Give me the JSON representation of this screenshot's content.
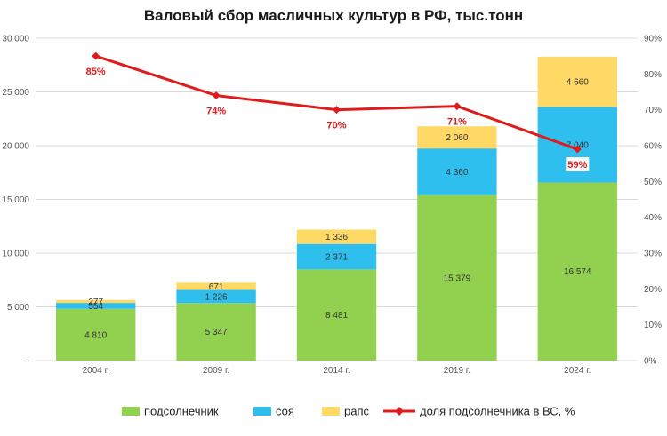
{
  "chart_data": {
    "type": "bar",
    "stacked": true,
    "title": "Валовый сбор масличных культур в РФ, тыс.тонн",
    "categories": [
      "2004 г.",
      "2009 г.",
      "2014 г.",
      "2019 г.",
      "2024 г."
    ],
    "series": [
      {
        "name": "подсолнечник",
        "color": "#92d050",
        "values": [
          4810,
          5347,
          8481,
          15379,
          16574
        ],
        "value_labels": [
          "4 810",
          "5 347",
          "8 481",
          "15 379",
          "16 574"
        ]
      },
      {
        "name": "соя",
        "color": "#2fbfee",
        "values": [
          554,
          1226,
          2371,
          4360,
          7040
        ],
        "value_labels": [
          "554",
          "1 226",
          "2 371",
          "4 360",
          "7 040"
        ]
      },
      {
        "name": "рапс",
        "color": "#ffd966",
        "values": [
          277,
          671,
          1336,
          2060,
          4660
        ],
        "value_labels": [
          "277",
          "671",
          "1 336",
          "2 060",
          "4 660"
        ]
      }
    ],
    "line_series": {
      "name": "доля подсолнечника в ВС, %",
      "color": "#e01b1b",
      "axis": "right",
      "values": [
        85,
        74,
        70,
        71,
        59
      ],
      "value_labels": [
        "85%",
        "74%",
        "70%",
        "71%",
        "59%"
      ]
    },
    "left_axis": {
      "ylim": [
        0,
        30000
      ],
      "ticks": [
        0,
        5000,
        10000,
        15000,
        20000,
        25000,
        30000
      ],
      "tick_labels": [
        "-",
        "5 000",
        "10 000",
        "15 000",
        "20 000",
        "25 000",
        "30 000"
      ]
    },
    "right_axis": {
      "ylim": [
        0,
        90
      ],
      "ticks": [
        0,
        10,
        20,
        30,
        40,
        50,
        60,
        70,
        80,
        90
      ],
      "tick_labels": [
        "0%",
        "10%",
        "20%",
        "30%",
        "40%",
        "50%",
        "60%",
        "70%",
        "80%",
        "90%"
      ]
    },
    "grid": true,
    "grid_color": "#d9d9d9",
    "legend_placement": "bottom"
  }
}
